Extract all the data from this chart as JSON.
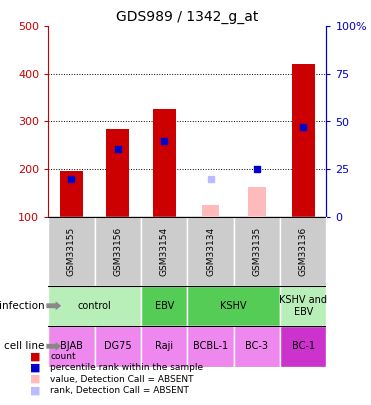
{
  "title": "GDS989 / 1342_g_at",
  "samples": [
    "GSM33155",
    "GSM33156",
    "GSM33154",
    "GSM33134",
    "GSM33135",
    "GSM33136"
  ],
  "red_bars": [
    195,
    285,
    327,
    null,
    null,
    420
  ],
  "blue_squares": [
    180,
    243,
    260,
    null,
    200,
    288
  ],
  "pink_bars": [
    null,
    null,
    null,
    125,
    162,
    null
  ],
  "lavender_squares": [
    null,
    null,
    null,
    180,
    null,
    null
  ],
  "ylim": [
    100,
    500
  ],
  "yticks_left": [
    100,
    200,
    300,
    400,
    500
  ],
  "y_right_labels": [
    "0",
    "25",
    "50",
    "75",
    "100%"
  ],
  "infection_groups": [
    {
      "label": "control",
      "start": 0,
      "end": 1,
      "color": "#b8eeb8"
    },
    {
      "label": "EBV",
      "start": 2,
      "end": 2,
      "color": "#55cc55"
    },
    {
      "label": "KSHV",
      "start": 3,
      "end": 4,
      "color": "#55cc55"
    },
    {
      "label": "KSHV and\nEBV",
      "start": 5,
      "end": 5,
      "color": "#b8eeb8"
    }
  ],
  "cell_lines": [
    "BJAB",
    "DG75",
    "Raji",
    "BCBL-1",
    "BC-3",
    "BC-1"
  ],
  "cell_line_colors": [
    "#ee88ee",
    "#ee88ee",
    "#ee88ee",
    "#ee88ee",
    "#ee88ee",
    "#cc33cc"
  ],
  "left_axis_color": "#cc0000",
  "right_axis_color": "#0000cc",
  "legend_items": [
    {
      "color": "#cc0000",
      "label": "count"
    },
    {
      "color": "#0000cc",
      "label": "percentile rank within the sample"
    },
    {
      "color": "#ffbbbb",
      "label": "value, Detection Call = ABSENT"
    },
    {
      "color": "#bbbbff",
      "label": "rank, Detection Call = ABSENT"
    }
  ]
}
